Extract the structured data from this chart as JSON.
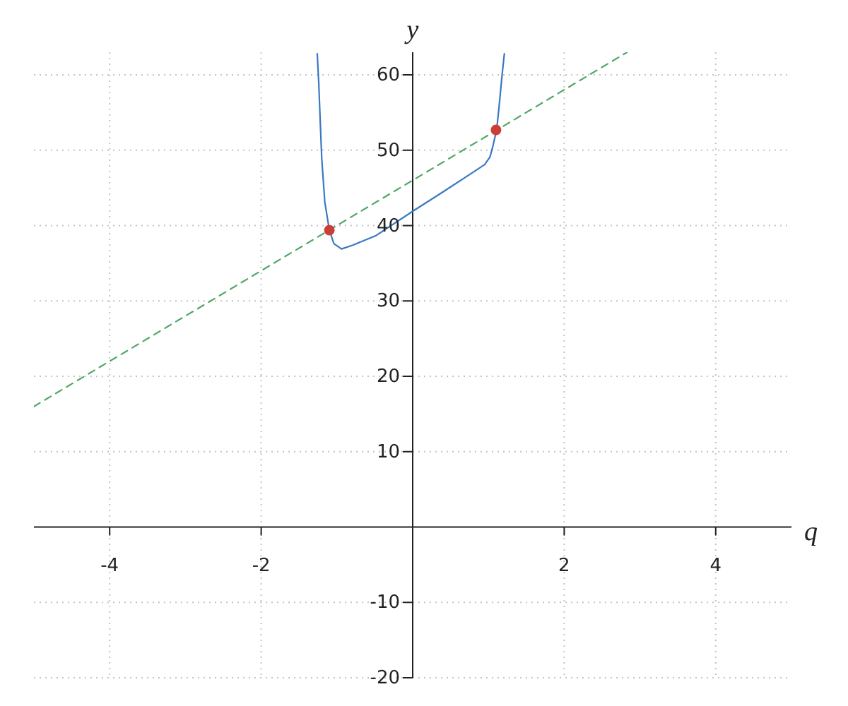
{
  "chart_data": {
    "type": "line",
    "xlabel": "q",
    "ylabel": "y",
    "xlim": [
      -5,
      5
    ],
    "ylim": [
      -20,
      63
    ],
    "xticks": [
      -4,
      -2,
      2,
      4
    ],
    "yticks": [
      -20,
      -10,
      10,
      20,
      30,
      40,
      50,
      60
    ],
    "grid": true,
    "line_style": "solid",
    "marker": "none",
    "series": [
      {
        "type": "line",
        "color": "#3a78c2",
        "x": [
          -1.26,
          -1.24,
          -1.22,
          -1.2,
          -1.16,
          -1.1,
          -1.04,
          -0.94,
          -0.79,
          -0.48,
          0,
          0.39,
          0.77,
          0.95,
          1.02,
          1.06,
          1.11,
          1.15,
          1.18,
          1.21
        ],
        "values": [
          62.8,
          58.9,
          53.7,
          48.8,
          43.1,
          39.4,
          37.6,
          36.9,
          37.4,
          38.7,
          41.9,
          44.4,
          46.9,
          48.1,
          49.1,
          50.6,
          52.8,
          56.8,
          60,
          62.8
        ]
      },
      {
        "type": "line",
        "color": "#4ea865",
        "line_style": "dashed",
        "x": [
          -5,
          2.83
        ],
        "values": [
          16,
          63
        ]
      },
      {
        "type": "scatter",
        "color": "#cc3e35",
        "marker": "circle",
        "x": [
          -1.1,
          1.1
        ],
        "values": [
          39.4,
          52.7
        ]
      }
    ]
  }
}
